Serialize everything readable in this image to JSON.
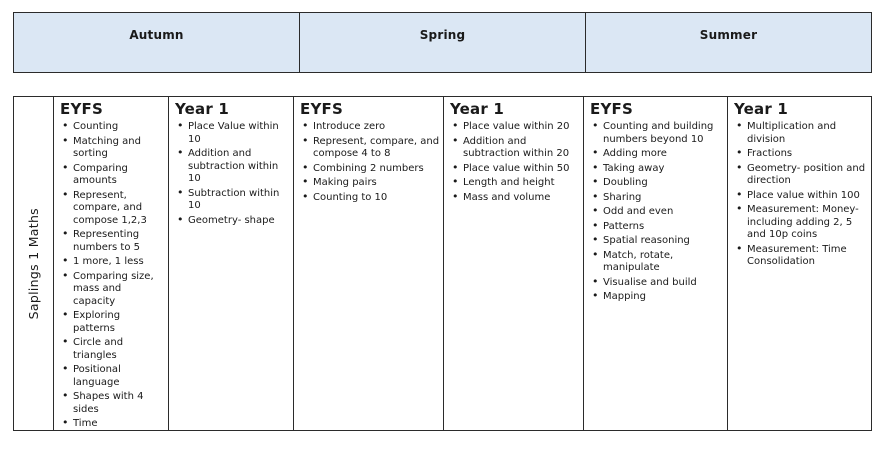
{
  "colors": {
    "term_header_fill": "#dbe7f4",
    "border": "#2b2b2b",
    "text": "#1a1a1a"
  },
  "terms": [
    "Autumn",
    "Spring",
    "Summer"
  ],
  "row_label": "Saplings 1 Maths",
  "columns": [
    {
      "term": "Autumn",
      "title": "EYFS",
      "items": [
        "Counting",
        "Matching and sorting",
        "Comparing amounts",
        "Represent, compare, and compose 1,2,3",
        "Representing numbers to 5",
        "1 more, 1 less",
        "Comparing size, mass and capacity",
        "Exploring patterns",
        "Circle and triangles",
        "Positional language",
        "Shapes with 4 sides",
        "Time"
      ]
    },
    {
      "term": "Autumn",
      "title": "Year 1",
      "items": [
        "Place Value within 10",
        "Addition and subtraction within 10",
        "Subtraction within 10",
        "Geometry- shape"
      ]
    },
    {
      "term": "Spring",
      "title": "EYFS",
      "items": [
        "Introduce zero",
        "Represent, compare, and compose 4 to 8",
        "Combining 2 numbers",
        "Making pairs",
        "Counting to 10"
      ]
    },
    {
      "term": "Spring",
      "title": "Year 1",
      "items": [
        "Place value within 20",
        "Addition and subtraction within 20",
        "Place value within 50",
        "Length and height",
        "Mass and volume"
      ]
    },
    {
      "term": "Summer",
      "title": "EYFS",
      "items": [
        "Counting and building numbers beyond 10",
        "Adding more",
        "Taking away",
        "Doubling",
        "Sharing",
        "Odd and even",
        "Patterns",
        "Spatial reasoning",
        "Match, rotate, manipulate",
        "Visualise and build",
        "Mapping"
      ]
    },
    {
      "term": "Summer",
      "title": "Year 1",
      "items": [
        "Multiplication and division",
        "Fractions",
        "Geometry- position and direction",
        "Place value within 100",
        "Measurement: Money-including adding 2, 5 and 10p coins",
        "Measurement: Time Consolidation"
      ]
    }
  ]
}
